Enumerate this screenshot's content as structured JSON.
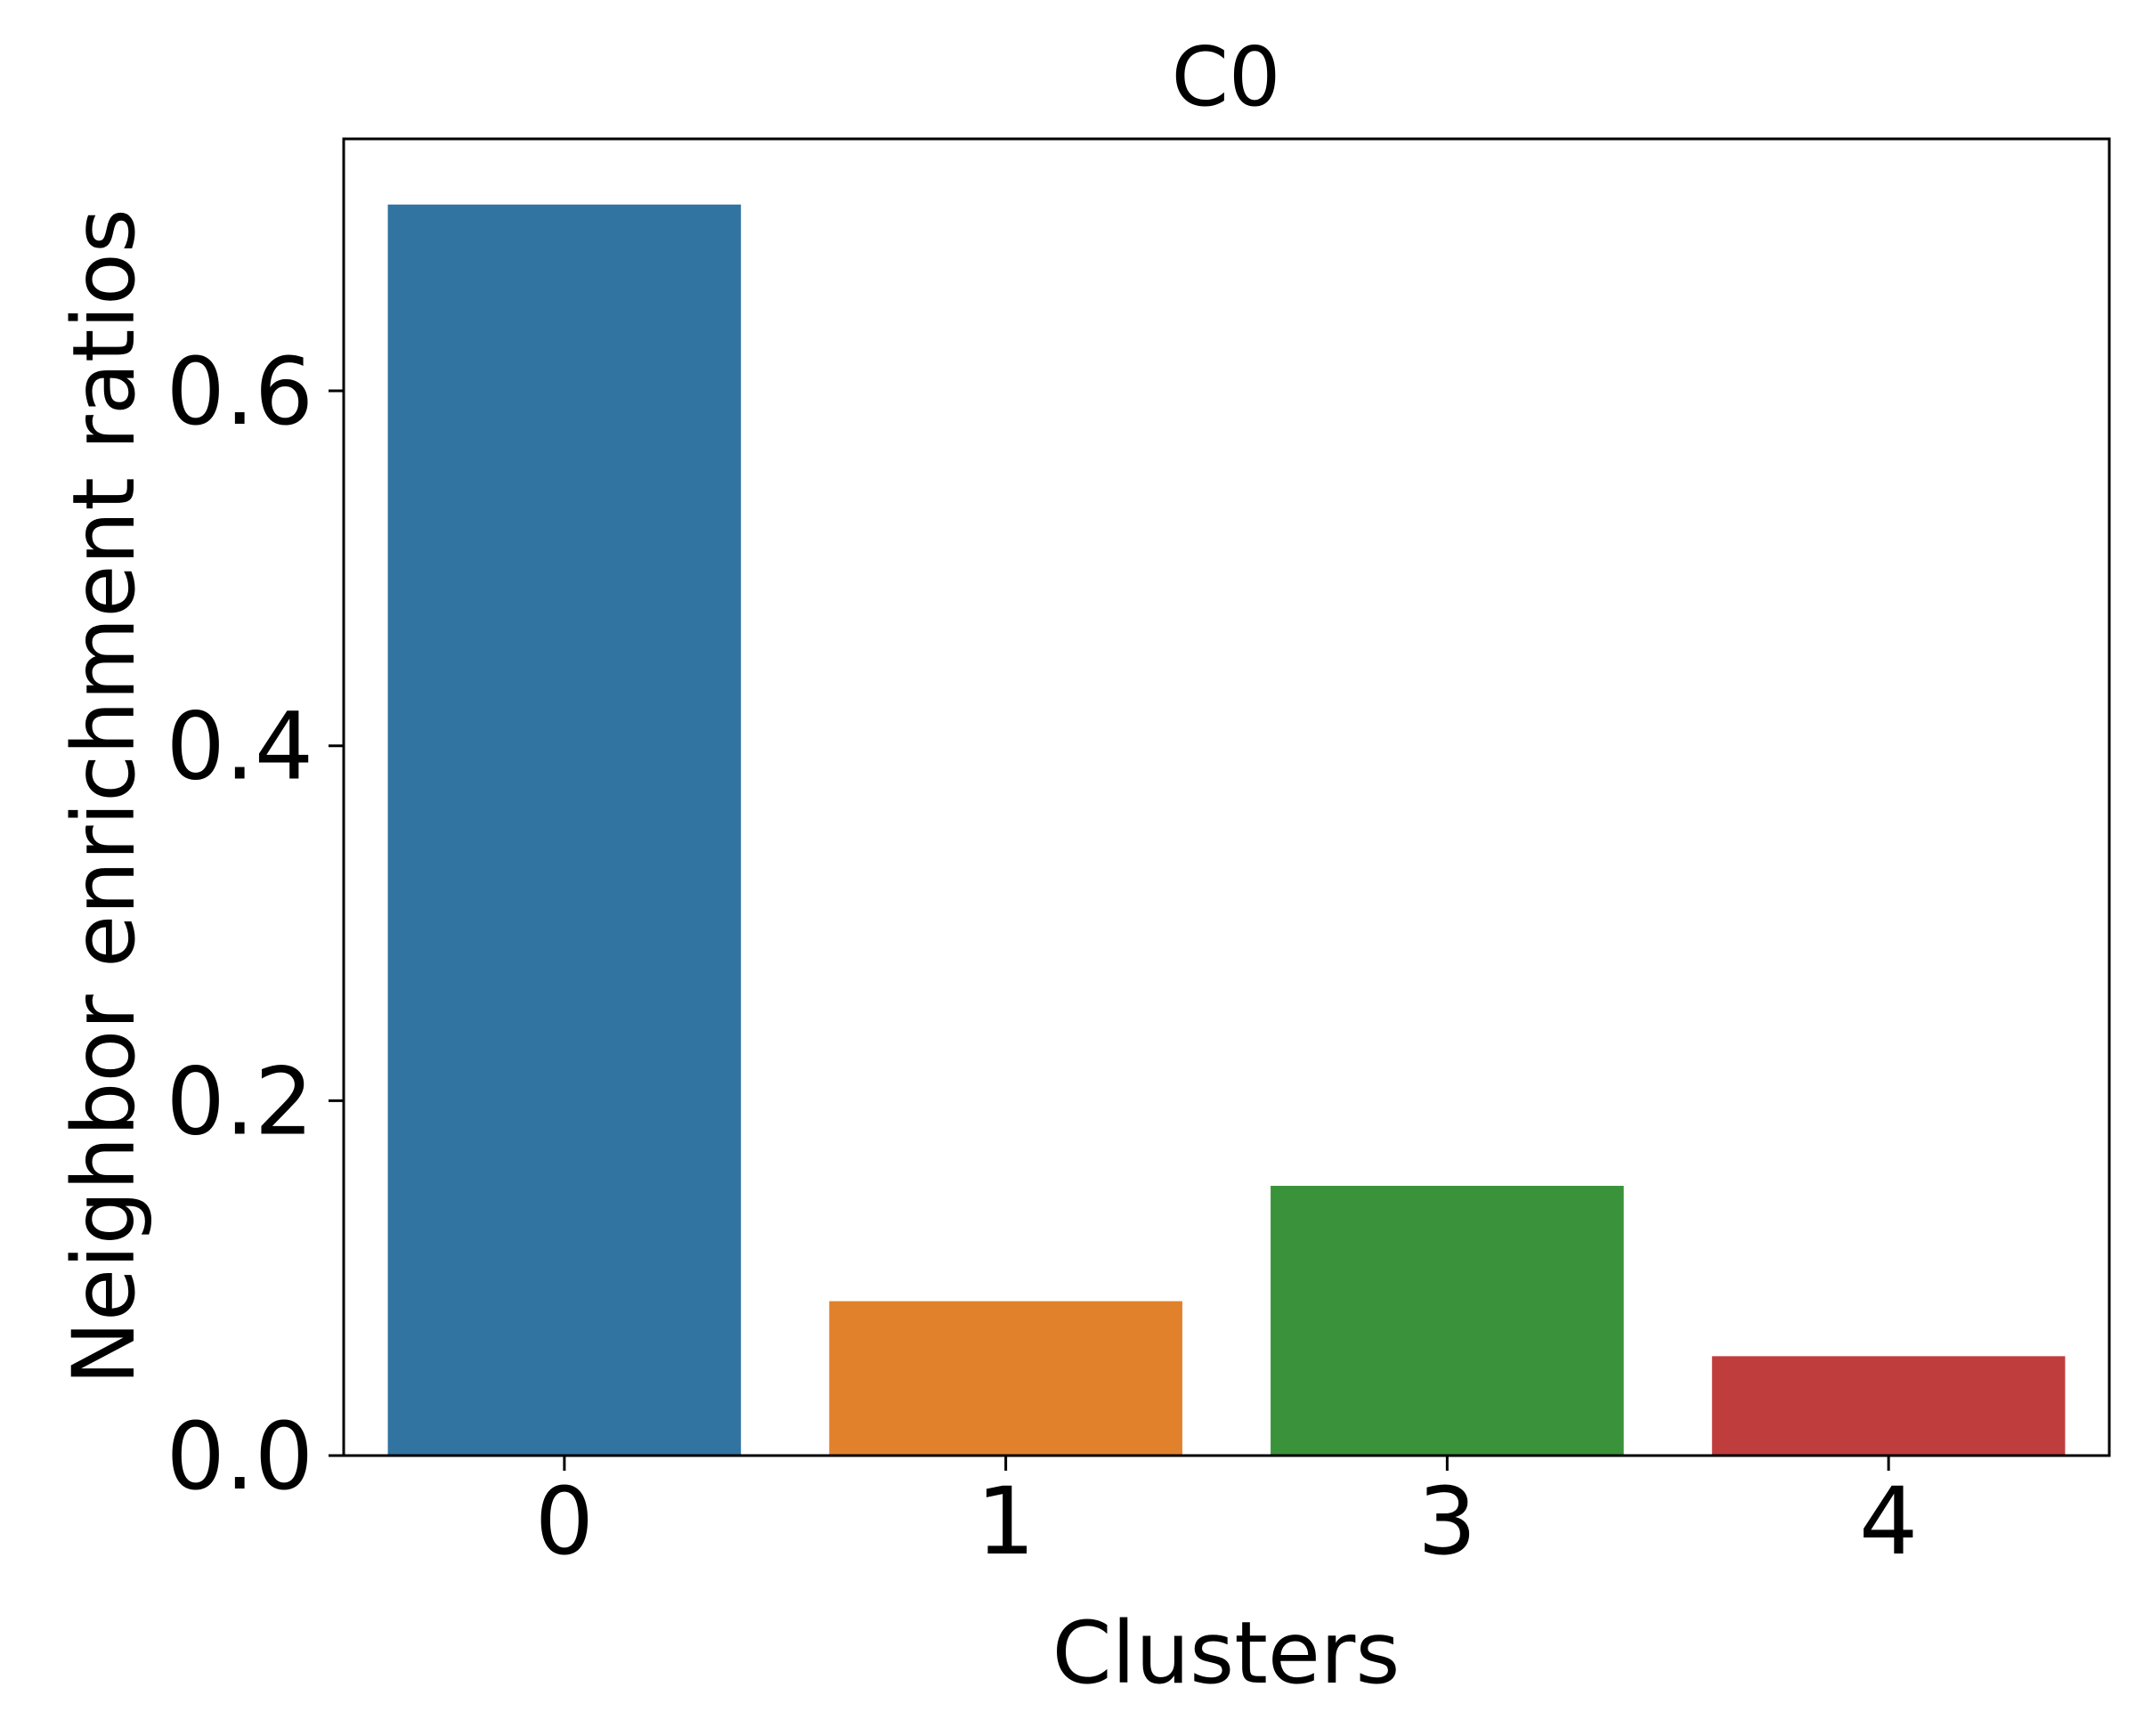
{
  "chart_data": {
    "type": "bar",
    "title": "C0",
    "xlabel": "Clusters",
    "ylabel": "Neighbor enrichment ratios",
    "categories": [
      "0",
      "1",
      "3",
      "4"
    ],
    "values": [
      0.705,
      0.087,
      0.152,
      0.056
    ],
    "colors": [
      "#3274a1",
      "#e1812c",
      "#3a923a",
      "#c03d3e"
    ],
    "ylim": [
      0,
      0.742
    ],
    "yticks": [
      0.0,
      0.2,
      0.4,
      0.6
    ],
    "ytick_labels": [
      "0.0",
      "0.2",
      "0.4",
      "0.6"
    ],
    "grid": false,
    "legend": "none"
  }
}
